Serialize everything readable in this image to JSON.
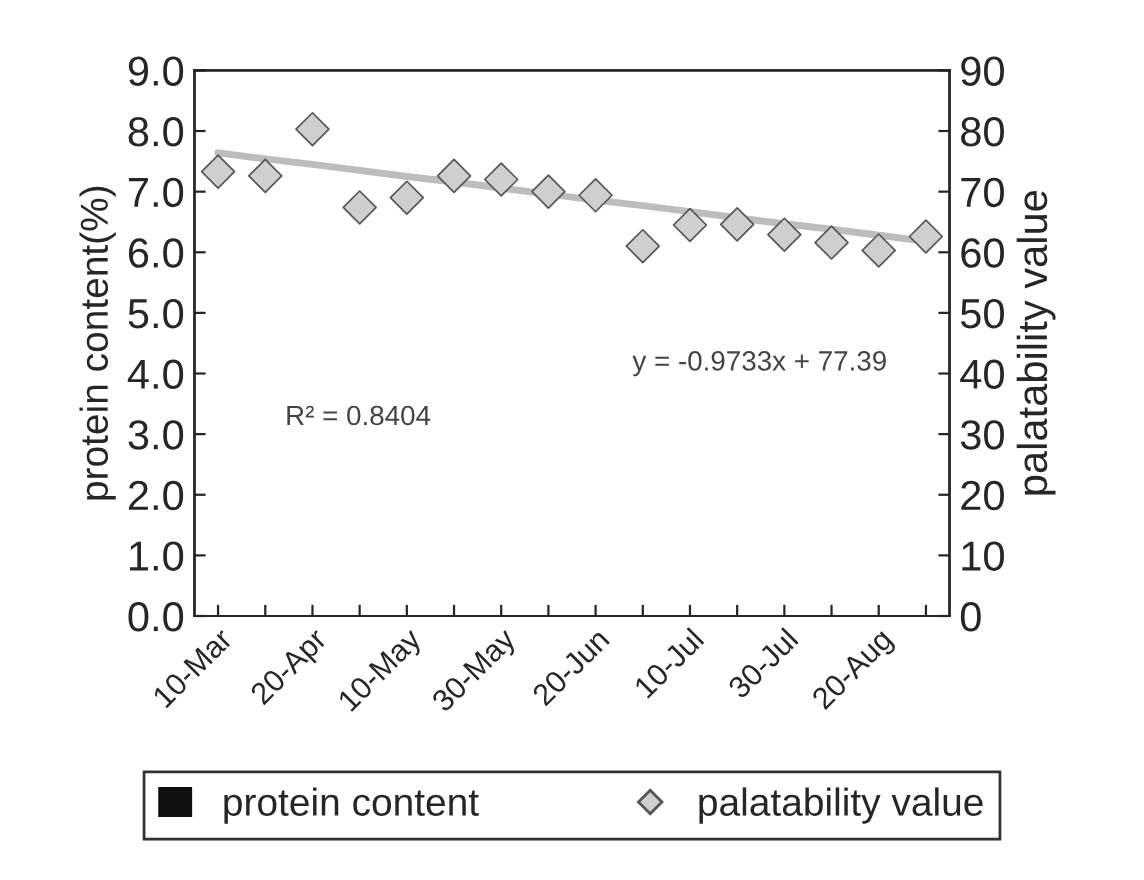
{
  "chart_data": {
    "type": "scatter",
    "categories": [
      "10-Mar",
      null,
      "20-Apr",
      null,
      "10-May",
      null,
      "30-May",
      null,
      "20-Jun",
      null,
      "10-Jul",
      null,
      "30-Jul",
      null,
      "20-Aug",
      null
    ],
    "ylabel": "protein content(%)",
    "y2label": "palatability value",
    "ylim": [
      0,
      9
    ],
    "yticks": [
      {
        "value": 0,
        "label": "0.0"
      },
      {
        "value": 1,
        "label": "1.0"
      },
      {
        "value": 2,
        "label": "2.0"
      },
      {
        "value": 3,
        "label": "3.0"
      },
      {
        "value": 4,
        "label": "4.0"
      },
      {
        "value": 5,
        "label": "5.0"
      },
      {
        "value": 6,
        "label": "6.0"
      },
      {
        "value": 7,
        "label": "7.0"
      },
      {
        "value": 8,
        "label": "8.0"
      },
      {
        "value": 9,
        "label": "9.0"
      }
    ],
    "y2lim": [
      0,
      90
    ],
    "y2ticks": [
      0,
      10,
      20,
      30,
      40,
      50,
      60,
      70,
      80,
      90
    ],
    "series": [
      {
        "name": "protein content",
        "type": "area",
        "color": "#111111",
        "values": [
          null,
          null,
          null,
          null,
          null,
          null,
          null,
          null,
          null,
          null,
          null,
          null,
          null,
          null,
          null,
          null
        ]
      },
      {
        "name": "palatability value",
        "axis": "y2",
        "color": "#cfcfcf",
        "marker": "diamond",
        "values": [
          73.3,
          72.6,
          80.3,
          67.4,
          69,
          72.6,
          72,
          70,
          69.4,
          61,
          64.5,
          64.6,
          62.9,
          61.6,
          60.3,
          62.6
        ]
      },
      {
        "type": "line",
        "axis": "y2",
        "color": "#bdbdbd",
        "values": [
          76.4,
          75.4,
          74.5,
          73.5,
          72.5,
          71.6,
          70.6,
          69.6,
          68.6,
          67.7,
          66.7,
          65.7,
          64.7,
          63.8,
          62.8,
          61.8
        ]
      }
    ],
    "annotations": [
      "y = -0.9733x + 77.39",
      "R² = 0.8404"
    ],
    "legend": "bottom",
    "grid": false
  }
}
